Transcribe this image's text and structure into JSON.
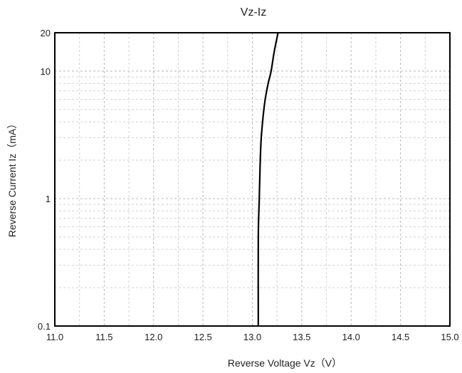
{
  "chart_data": {
    "type": "line",
    "title": "Vz-Iz",
    "xlabel": "Reverse Voltage Vz（V）",
    "ylabel": "Reverse Current Iz（mA）",
    "xlim": [
      11.0,
      15.0
    ],
    "ylim": [
      0.1,
      20
    ],
    "yscale": "log",
    "grid": true,
    "x_ticks": [
      "11.0",
      "11.5",
      "12.0",
      "12.5",
      "13.0",
      "13.5",
      "14.0",
      "14.5",
      "15.0"
    ],
    "y_ticks": [
      {
        "value": 0.1,
        "label": "0.1"
      },
      {
        "value": 1,
        "label": "1"
      },
      {
        "value": 10,
        "label": "10"
      },
      {
        "value": 20,
        "label": "20"
      }
    ],
    "series": [
      {
        "x": [
          13.06,
          13.06,
          13.07,
          13.08,
          13.09,
          13.11,
          13.13,
          13.16,
          13.19,
          13.22,
          13.26
        ],
        "y": [
          0.1,
          0.5,
          1.0,
          2.0,
          3.0,
          4.5,
          6.0,
          8.0,
          10.0,
          14.0,
          20.0
        ]
      }
    ]
  },
  "colors": {
    "curve": "#000000",
    "frame": "#000000",
    "grid": "#b8b8b8"
  }
}
